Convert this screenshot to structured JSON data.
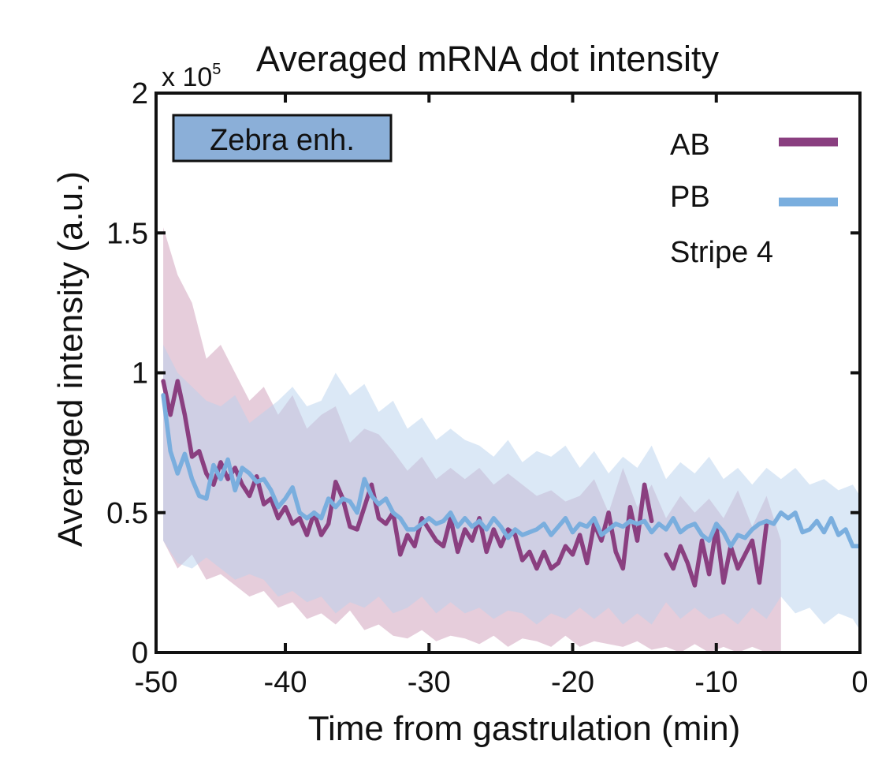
{
  "chart_data": {
    "type": "line",
    "title": "Averaged mRNA dot intensity",
    "ylabel": "Averaged intensity (a.u.)",
    "xlabel": "Time from gastrulation (min)",
    "y_multiplier_prefix": "x 10",
    "y_multiplier_exponent": "5",
    "xlim": [
      -49,
      0
    ],
    "ylim": [
      0,
      2
    ],
    "x_ticks": [
      -50,
      -40,
      -30,
      -20,
      -10,
      0
    ],
    "x_tick_labels": [
      "-50",
      "-40",
      "-30",
      "-20",
      "-10",
      "0"
    ],
    "y_ticks": [
      0,
      0.5,
      1,
      1.5,
      2
    ],
    "y_tick_labels": [
      "0",
      "0.5",
      "1",
      "1.5",
      "2"
    ],
    "annotation": "Zebra enh.",
    "annotation_color": "#8bafd8",
    "legend_position": "top-right",
    "legend_note": "Stripe 4",
    "series": [
      {
        "name": "AB",
        "color": "#8a3f80",
        "band_color": "#c890b0",
        "segments": [
          {
            "x": [
              -48.5,
              -48.0,
              -47.5,
              -47.0,
              -46.5,
              -46.0,
              -45.5,
              -45.0,
              -44.5,
              -44.0,
              -43.5,
              -43.0,
              -42.5,
              -42.0,
              -41.5,
              -41.0,
              -40.5,
              -40.0,
              -39.5,
              -39.0,
              -38.5,
              -38.0,
              -37.5,
              -37.0,
              -36.5,
              -36.0,
              -35.5,
              -35.0,
              -34.5,
              -34.0,
              -33.5,
              -33.0,
              -32.5,
              -32.0,
              -31.5,
              -31.0,
              -30.5,
              -30.0,
              -29.5,
              -29.0,
              -28.5,
              -28.0,
              -27.5,
              -27.0,
              -26.5,
              -26.0,
              -25.5,
              -25.0,
              -24.5,
              -24.0,
              -23.5,
              -23.0,
              -22.5,
              -22.0,
              -21.5,
              -21.0,
              -20.5,
              -20.0,
              -19.5,
              -19.0,
              -18.5,
              -18.0,
              -17.5,
              -17.0,
              -16.5,
              -16.0,
              -15.5,
              -15.0,
              -14.5
            ],
            "y": [
              0.97,
              0.85,
              0.97,
              0.85,
              0.7,
              0.72,
              0.64,
              0.6,
              0.68,
              0.62,
              0.66,
              0.6,
              0.56,
              0.63,
              0.53,
              0.55,
              0.48,
              0.52,
              0.46,
              0.48,
              0.42,
              0.5,
              0.42,
              0.46,
              0.61,
              0.55,
              0.45,
              0.44,
              0.52,
              0.6,
              0.48,
              0.46,
              0.5,
              0.35,
              0.42,
              0.38,
              0.48,
              0.44,
              0.4,
              0.38,
              0.48,
              0.36,
              0.44,
              0.4,
              0.48,
              0.36,
              0.44,
              0.38,
              0.44,
              0.42,
              0.33,
              0.36,
              0.3,
              0.36,
              0.3,
              0.32,
              0.38,
              0.35,
              0.42,
              0.32,
              0.46,
              0.4,
              0.5,
              0.36,
              0.3,
              0.52,
              0.4,
              0.6,
              0.47
            ]
          },
          {
            "x": [
              -13.5,
              -13.0,
              -12.5,
              -12.0,
              -11.5,
              -11.0,
              -10.5,
              -10.0,
              -9.5,
              -9.0,
              -8.5,
              -8.0,
              -7.5,
              -7.0,
              -6.5
            ],
            "y": [
              0.35,
              0.3,
              0.38,
              0.32,
              0.24,
              0.4,
              0.28,
              0.45,
              0.25,
              0.38,
              0.3,
              0.35,
              0.4,
              0.25,
              0.46
            ]
          }
        ],
        "band": {
          "x": [
            -48.5,
            -47.5,
            -46.5,
            -45.5,
            -44.5,
            -43.5,
            -42.5,
            -41.5,
            -40.5,
            -39.5,
            -38.5,
            -37.5,
            -36.5,
            -35.5,
            -34.5,
            -33.5,
            -32.5,
            -31.5,
            -30.5,
            -29.5,
            -28.5,
            -27.5,
            -26.5,
            -25.5,
            -24.5,
            -23.5,
            -22.5,
            -21.5,
            -20.5,
            -19.5,
            -18.5,
            -17.5,
            -16.5,
            -15.5,
            -14.5,
            -13.5,
            -12.5,
            -11.5,
            -10.5,
            -9.5,
            -8.5,
            -7.5,
            -6.5,
            -5.5
          ],
          "upper": [
            1.52,
            1.35,
            1.25,
            1.05,
            1.1,
            1.0,
            0.9,
            0.95,
            0.85,
            0.92,
            0.8,
            0.85,
            0.88,
            0.75,
            0.8,
            0.78,
            0.72,
            0.65,
            0.7,
            0.62,
            0.66,
            0.62,
            0.66,
            0.6,
            0.64,
            0.6,
            0.56,
            0.58,
            0.54,
            0.56,
            0.62,
            0.5,
            0.66,
            0.52,
            0.6,
            0.48,
            0.56,
            0.5,
            0.55,
            0.48,
            0.58,
            0.45,
            0.56,
            0.4
          ],
          "lower": [
            0.4,
            0.3,
            0.35,
            0.26,
            0.28,
            0.24,
            0.2,
            0.22,
            0.16,
            0.18,
            0.12,
            0.14,
            0.1,
            0.15,
            0.08,
            0.1,
            0.06,
            0.05,
            0.08,
            0.04,
            0.06,
            0.05,
            0.03,
            0.06,
            0.02,
            0.05,
            0.04,
            0.02,
            0.06,
            0.02,
            0.04,
            0.03,
            0.02,
            0.04,
            0.01,
            0.02,
            0.0,
            0.03,
            0.0,
            0.02,
            0.0,
            0.02,
            0.0,
            0.0
          ]
        }
      },
      {
        "name": "PB",
        "color": "#7aaede",
        "band_color": "#b7d2ee",
        "segments": [
          {
            "x": [
              -48.5,
              -48.0,
              -47.5,
              -47.0,
              -46.5,
              -46.0,
              -45.5,
              -45.0,
              -44.5,
              -44.0,
              -43.5,
              -43.0,
              -42.5,
              -42.0,
              -41.5,
              -41.0,
              -40.5,
              -40.0,
              -39.5,
              -39.0,
              -38.5,
              -38.0,
              -37.5,
              -37.0,
              -36.5,
              -36.0,
              -35.5,
              -35.0,
              -34.5,
              -34.0,
              -33.5,
              -33.0,
              -32.5,
              -32.0,
              -31.5,
              -31.0,
              -30.5,
              -30.0,
              -29.5,
              -29.0,
              -28.5,
              -28.0,
              -27.5,
              -27.0,
              -26.5,
              -26.0,
              -25.5,
              -25.0,
              -24.5,
              -24.0,
              -23.5,
              -23.0,
              -22.5,
              -22.0,
              -21.5,
              -21.0,
              -20.5,
              -20.0,
              -19.5,
              -19.0,
              -18.5,
              -18.0,
              -17.5,
              -17.0,
              -16.5,
              -16.0,
              -15.5,
              -15.0,
              -14.5,
              -14.0,
              -13.5,
              -13.0,
              -12.5,
              -12.0,
              -11.5,
              -11.0,
              -10.5,
              -10.0,
              -9.5,
              -9.0,
              -8.5,
              -8.0,
              -7.5,
              -7.0,
              -6.5,
              -6.0,
              -5.5,
              -5.0,
              -4.5,
              -4.0,
              -3.5,
              -3.0,
              -2.5,
              -2.0,
              -1.5,
              -1.0,
              -0.5,
              0.0
            ],
            "y": [
              0.92,
              0.72,
              0.64,
              0.71,
              0.62,
              0.56,
              0.55,
              0.67,
              0.62,
              0.69,
              0.58,
              0.66,
              0.64,
              0.61,
              0.62,
              0.58,
              0.52,
              0.55,
              0.59,
              0.5,
              0.48,
              0.5,
              0.48,
              0.55,
              0.52,
              0.55,
              0.54,
              0.5,
              0.62,
              0.56,
              0.53,
              0.55,
              0.5,
              0.48,
              0.44,
              0.44,
              0.46,
              0.48,
              0.46,
              0.47,
              0.5,
              0.45,
              0.48,
              0.45,
              0.47,
              0.44,
              0.48,
              0.45,
              0.41,
              0.44,
              0.42,
              0.43,
              0.44,
              0.46,
              0.42,
              0.45,
              0.48,
              0.43,
              0.46,
              0.45,
              0.48,
              0.42,
              0.44,
              0.46,
              0.45,
              0.47,
              0.46,
              0.47,
              0.43,
              0.46,
              0.44,
              0.48,
              0.43,
              0.45,
              0.46,
              0.42,
              0.4,
              0.46,
              0.43,
              0.38,
              0.42,
              0.41,
              0.44,
              0.46,
              0.47,
              0.46,
              0.5,
              0.48,
              0.5,
              0.43,
              0.44,
              0.47,
              0.43,
              0.48,
              0.42,
              0.44,
              0.38,
              0.38
            ]
          }
        ],
        "band": {
          "x": [
            -48.5,
            -47.5,
            -46.5,
            -45.5,
            -44.5,
            -43.5,
            -42.5,
            -41.5,
            -40.5,
            -39.5,
            -38.5,
            -37.5,
            -36.5,
            -35.5,
            -34.5,
            -33.5,
            -32.5,
            -31.5,
            -30.5,
            -29.5,
            -28.5,
            -27.5,
            -26.5,
            -25.5,
            -24.5,
            -23.5,
            -22.5,
            -21.5,
            -20.5,
            -19.5,
            -18.5,
            -17.5,
            -16.5,
            -15.5,
            -14.5,
            -13.5,
            -12.5,
            -11.5,
            -10.5,
            -9.5,
            -8.5,
            -7.5,
            -6.5,
            -5.5,
            -4.5,
            -3.5,
            -2.5,
            -1.5,
            -0.5,
            0.0
          ],
          "upper": [
            1.1,
            1.0,
            0.95,
            0.9,
            0.88,
            0.92,
            0.82,
            0.86,
            0.9,
            0.95,
            0.88,
            0.9,
            1.0,
            0.92,
            0.96,
            0.86,
            0.9,
            0.8,
            0.84,
            0.76,
            0.8,
            0.76,
            0.74,
            0.7,
            0.76,
            0.68,
            0.72,
            0.7,
            0.74,
            0.66,
            0.72,
            0.64,
            0.7,
            0.66,
            0.74,
            0.62,
            0.68,
            0.64,
            0.7,
            0.62,
            0.66,
            0.6,
            0.66,
            0.62,
            0.66,
            0.6,
            0.62,
            0.58,
            0.6,
            0.56
          ],
          "lower": [
            0.4,
            0.32,
            0.3,
            0.34,
            0.3,
            0.26,
            0.28,
            0.26,
            0.2,
            0.22,
            0.18,
            0.2,
            0.14,
            0.18,
            0.16,
            0.2,
            0.14,
            0.16,
            0.2,
            0.14,
            0.18,
            0.14,
            0.16,
            0.12,
            0.15,
            0.14,
            0.1,
            0.14,
            0.12,
            0.16,
            0.12,
            0.16,
            0.1,
            0.14,
            0.1,
            0.18,
            0.12,
            0.16,
            0.12,
            0.14,
            0.1,
            0.16,
            0.12,
            0.2,
            0.14,
            0.16,
            0.1,
            0.14,
            0.12,
            0.08
          ]
        }
      }
    ]
  }
}
